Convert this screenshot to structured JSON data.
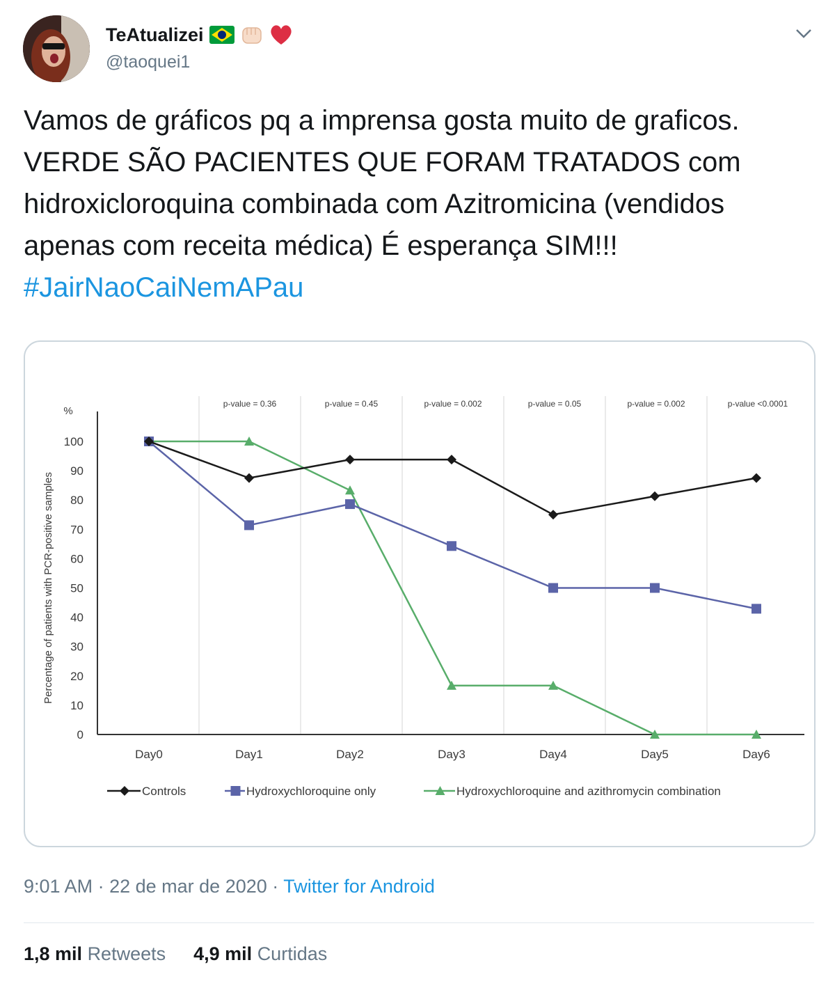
{
  "tweet": {
    "display_name": "TeAtualizei",
    "handle": "@taoquei1",
    "text_part1": "Vamos de gráficos pq a imprensa gosta muito de graficos. VERDE SÃO PACIENTES QUE FORAM TRATADOS com hidroxicloroquina combinada com Azitromicina (vendidos apenas com receita médica) É esperança SIM!!! ",
    "hashtag": "#JairNaoCaiNemAPau",
    "time": "9:01 AM",
    "date": "22 de mar de 2020",
    "separator": "·",
    "source": "Twitter for Android",
    "retweets_count": "1,8 mil",
    "retweets_label": "Retweets",
    "likes_count": "4,9 mil",
    "likes_label": "Curtidas"
  },
  "icons": {
    "flag": "brazil-flag-emoji",
    "fist": "raised-fist-emoji",
    "heart": "red-heart-emoji",
    "menu": "chevron-down-icon"
  },
  "colors": {
    "link": "#1b95e0",
    "secondary_text": "#657786",
    "controls": "#1a1a1a",
    "hcq": "#5b64a8",
    "hcq_azi": "#58ad6a"
  },
  "chart_data": {
    "type": "line",
    "ylabel": "Percentage of patients with PCR-positive samples",
    "yunit": "%",
    "ylim": [
      0,
      100
    ],
    "yticks": [
      0,
      10,
      20,
      30,
      40,
      50,
      60,
      70,
      80,
      90,
      100
    ],
    "categories": [
      "Day0",
      "Day1",
      "Day2",
      "Day3",
      "Day4",
      "Day5",
      "Day6"
    ],
    "p_values": [
      "",
      "p-value = 0.36",
      "p-value = 0.45",
      "p-value = 0.002",
      "p-value = 0.05",
      "p-value = 0.002",
      "p-value <0.0001"
    ],
    "grid": "vertical",
    "legend_position": "bottom",
    "series": [
      {
        "name": "Controls",
        "marker": "diamond",
        "color": "#1a1a1a",
        "values": [
          100,
          87.5,
          93.8,
          93.8,
          75,
          81.3,
          87.5
        ]
      },
      {
        "name": "Hydroxychloroquine only",
        "marker": "square",
        "color": "#5b64a8",
        "values": [
          100,
          71.4,
          78.6,
          64.3,
          50,
          50,
          42.9
        ]
      },
      {
        "name": "Hydroxychloroquine and azithromycin combination",
        "marker": "triangle",
        "color": "#58ad6a",
        "values": [
          100,
          100,
          83.3,
          16.7,
          16.7,
          0,
          0
        ]
      }
    ]
  }
}
